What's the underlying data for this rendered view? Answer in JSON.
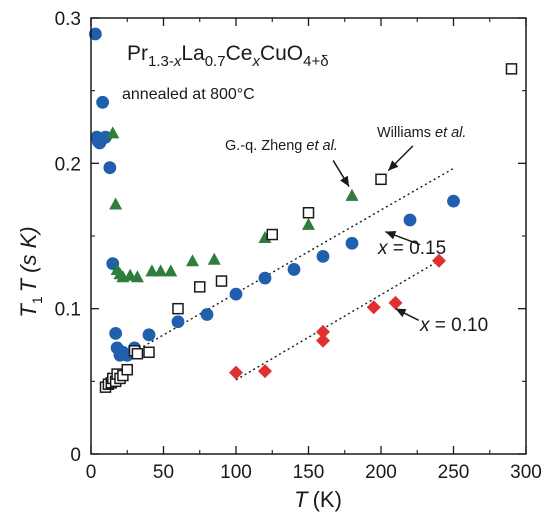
{
  "chart_data": {
    "type": "scatter",
    "xaxis": {
      "label_main": "T",
      "label_unit": "(K)",
      "range": [
        0,
        300
      ],
      "ticks": [
        "0",
        "50",
        "100",
        "150",
        "200",
        "250",
        "300"
      ]
    },
    "yaxis": {
      "label_main": "T",
      "label_sub": "1",
      "label_rest": "T (s K)",
      "range": [
        0,
        0.3
      ],
      "ticks": [
        "0",
        "0.1",
        "0.2",
        "0.3"
      ]
    },
    "title": {
      "parts": [
        {
          "t": "Pr",
          "s": "n"
        },
        {
          "t": "1.3-",
          "s": "sub"
        },
        {
          "t": "x",
          "s": "sub-i"
        },
        {
          "t": "La",
          "s": "n"
        },
        {
          "t": "0.7",
          "s": "sub"
        },
        {
          "t": "Ce",
          "s": "n"
        },
        {
          "t": "x",
          "s": "sub-i"
        },
        {
          "t": "CuO",
          "s": "n"
        },
        {
          "t": "4+δ",
          "s": "sub"
        }
      ],
      "subtitle": "annealed at 800°C"
    },
    "annotations": {
      "zheng": {
        "text": "G.-q. Zheng ",
        "italic": "et al."
      },
      "williams": {
        "text": "Williams ",
        "italic": "et al."
      },
      "x015": {
        "var": "x",
        "rest": " = 0.15"
      },
      "x010": {
        "var": "x",
        "rest": " = 0.10"
      }
    },
    "series": [
      {
        "key": "x015",
        "marker": "circle",
        "color": "#1f5fae",
        "points": [
          [
            3,
            0.289
          ],
          [
            4,
            0.218
          ],
          [
            5,
            0.215
          ],
          [
            6,
            0.214
          ],
          [
            7,
            0.216
          ],
          [
            8,
            0.242
          ],
          [
            10,
            0.218
          ],
          [
            13,
            0.197
          ],
          [
            15,
            0.131
          ],
          [
            17,
            0.083
          ],
          [
            18,
            0.073
          ],
          [
            20,
            0.068
          ],
          [
            22,
            0.07
          ],
          [
            25,
            0.068
          ],
          [
            30,
            0.073
          ],
          [
            40,
            0.082
          ],
          [
            60,
            0.091
          ],
          [
            80,
            0.096
          ],
          [
            100,
            0.11
          ],
          [
            120,
            0.121
          ],
          [
            140,
            0.127
          ],
          [
            160,
            0.136
          ],
          [
            180,
            0.145
          ],
          [
            220,
            0.161
          ],
          [
            250,
            0.174
          ]
        ]
      },
      {
        "key": "x010",
        "marker": "diamond",
        "color": "#e03030",
        "points": [
          [
            100,
            0.056
          ],
          [
            120,
            0.057
          ],
          [
            160,
            0.084
          ],
          [
            160,
            0.078
          ],
          [
            195,
            0.101
          ],
          [
            210,
            0.104
          ],
          [
            240,
            0.133
          ]
        ]
      },
      {
        "key": "zheng",
        "marker": "triangle",
        "color": "#2e7d3c",
        "points": [
          [
            15,
            0.221
          ],
          [
            17,
            0.172
          ],
          [
            18,
            0.127
          ],
          [
            20,
            0.124
          ],
          [
            22,
            0.122
          ],
          [
            27,
            0.123
          ],
          [
            32,
            0.122
          ],
          [
            42,
            0.126
          ],
          [
            48,
            0.126
          ],
          [
            55,
            0.126
          ],
          [
            70,
            0.133
          ],
          [
            85,
            0.134
          ],
          [
            120,
            0.149
          ],
          [
            150,
            0.158
          ],
          [
            180,
            0.178
          ]
        ]
      },
      {
        "key": "williams",
        "marker": "square",
        "color": "#1a1a1a",
        "points": [
          [
            10,
            0.046
          ],
          [
            12,
            0.048
          ],
          [
            14,
            0.049
          ],
          [
            15,
            0.052
          ],
          [
            17,
            0.05
          ],
          [
            18,
            0.055
          ],
          [
            20,
            0.052
          ],
          [
            22,
            0.054
          ],
          [
            25,
            0.058
          ],
          [
            30,
            0.071
          ],
          [
            32,
            0.069
          ],
          [
            40,
            0.07
          ],
          [
            60,
            0.1
          ],
          [
            75,
            0.115
          ],
          [
            90,
            0.119
          ],
          [
            125,
            0.151
          ],
          [
            150,
            0.166
          ],
          [
            200,
            0.189
          ],
          [
            290,
            0.265
          ]
        ]
      }
    ],
    "fit_lines": [
      {
        "key": "x015",
        "from": [
          30,
          0.0705
        ],
        "to": [
          250,
          0.1965
        ]
      },
      {
        "key": "x010",
        "from": [
          100,
          0.051
        ],
        "to": [
          240,
          0.133
        ]
      }
    ]
  }
}
